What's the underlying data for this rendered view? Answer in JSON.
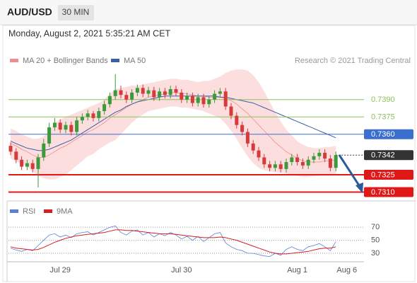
{
  "header": {
    "symbol": "AUD/USD",
    "interval": "30 MIN",
    "date": "Monday, August 2, 2021 5:35:21 AM CET",
    "credit": "Research © 2021 Trading Central"
  },
  "chart_data": [
    {
      "type": "candlestick",
      "categories": [
        null,
        null,
        null,
        null,
        null,
        null,
        null,
        null,
        null,
        "Jul 29",
        null,
        null,
        null,
        null,
        null,
        null,
        null,
        null,
        null,
        null,
        null,
        null,
        null,
        null,
        null,
        null,
        null,
        null,
        null,
        null,
        null,
        "Jul 30",
        null,
        null,
        null,
        null,
        null,
        null,
        null,
        null,
        null,
        null,
        null,
        null,
        null,
        null,
        null,
        null,
        null,
        null,
        null,
        null,
        "Aug 1",
        null,
        null,
        null,
        null,
        null,
        null,
        null,
        null,
        "Aug 6"
      ],
      "open": [
        0.735,
        0.7345,
        0.7338,
        0.7332,
        0.7335,
        0.733,
        0.734,
        0.7352,
        0.7366,
        0.737,
        0.7364,
        0.7368,
        0.7362,
        0.7372,
        0.7375,
        0.7378,
        0.7374,
        0.738,
        0.7386,
        0.7393,
        0.7398,
        0.7394,
        0.739,
        0.7396,
        0.74,
        0.7395,
        0.7398,
        0.7392,
        0.7397,
        0.7394,
        0.7399,
        0.7396,
        0.739,
        0.7393,
        0.7387,
        0.7392,
        0.7386,
        0.739,
        0.7395,
        0.7397,
        0.7384,
        0.7376,
        0.7368,
        0.7362,
        0.7352,
        0.7346,
        0.734,
        0.7334,
        0.7331,
        0.7334,
        0.733,
        0.7336,
        0.734,
        0.7336,
        0.7333,
        0.7338,
        0.7341,
        0.7344,
        0.7339,
        0.7331,
        null,
        null
      ],
      "high": [
        0.7353,
        0.7348,
        0.7341,
        0.7338,
        0.7338,
        0.7343,
        0.7356,
        0.737,
        0.7374,
        0.7373,
        0.7371,
        0.7371,
        0.7375,
        0.7378,
        0.7381,
        0.738,
        0.7383,
        0.7389,
        0.7396,
        0.7412,
        0.7402,
        0.7397,
        0.7399,
        0.7403,
        0.7403,
        0.7401,
        0.7401,
        0.74,
        0.74,
        0.7402,
        0.7402,
        0.7399,
        0.7396,
        0.7396,
        0.7395,
        0.7395,
        0.7393,
        0.7398,
        0.74,
        0.74,
        0.7387,
        0.7379,
        0.7371,
        0.7365,
        0.7355,
        0.7349,
        0.7343,
        0.7337,
        0.7337,
        0.7337,
        0.7339,
        0.7343,
        0.7343,
        0.7339,
        0.7341,
        0.7344,
        0.7347,
        0.7347,
        0.7342,
        0.7345,
        null,
        null
      ],
      "low": [
        0.7342,
        0.7335,
        0.7329,
        0.7329,
        0.7327,
        0.7314,
        0.7337,
        0.7349,
        0.7363,
        0.7361,
        0.7361,
        0.7359,
        0.7359,
        0.7369,
        0.7372,
        0.7371,
        0.7371,
        0.7377,
        0.7383,
        0.739,
        0.7391,
        0.7387,
        0.7387,
        0.7393,
        0.7392,
        0.7392,
        0.7389,
        0.7389,
        0.7391,
        0.7391,
        0.7393,
        0.7387,
        0.7387,
        0.7384,
        0.7384,
        0.7383,
        0.7383,
        0.7387,
        0.7392,
        0.7381,
        0.7373,
        0.7365,
        0.7359,
        0.7349,
        0.7343,
        0.7337,
        0.7331,
        0.7328,
        0.7328,
        0.7327,
        0.7327,
        0.7333,
        0.7333,
        0.733,
        0.733,
        0.7335,
        0.7338,
        0.7336,
        0.7328,
        0.7328,
        null,
        null
      ],
      "close": [
        0.7345,
        0.7338,
        0.7332,
        0.7335,
        0.733,
        0.734,
        0.7352,
        0.7366,
        0.737,
        0.7364,
        0.7368,
        0.7362,
        0.7372,
        0.7375,
        0.7378,
        0.7374,
        0.738,
        0.7386,
        0.7393,
        0.7398,
        0.7394,
        0.739,
        0.7396,
        0.74,
        0.7395,
        0.7398,
        0.7392,
        0.7397,
        0.7394,
        0.7399,
        0.7396,
        0.739,
        0.7393,
        0.7387,
        0.7392,
        0.7386,
        0.739,
        0.7395,
        0.7397,
        0.7384,
        0.7376,
        0.7368,
        0.7362,
        0.7352,
        0.7346,
        0.734,
        0.7334,
        0.7331,
        0.7334,
        0.733,
        0.7336,
        0.734,
        0.7336,
        0.7333,
        0.7338,
        0.7341,
        0.7344,
        0.7339,
        0.7331,
        0.7342,
        null,
        null
      ],
      "up_color": "#3c9a3c",
      "down_color": "#d63b3b",
      "ylim": [
        0.7303,
        0.7432
      ],
      "series": [
        {
          "name": "MA 20 + Bollinger Bands",
          "color": "#f08c8c",
          "band_color": "#fbd3d3",
          "values": [
            0.7352,
            0.735,
            0.7347,
            0.7345,
            0.7342,
            0.734,
            0.734,
            0.7342,
            0.7345,
            0.7348,
            0.735,
            0.7353,
            0.7356,
            0.7359,
            0.7362,
            0.7364,
            0.7367,
            0.737,
            0.7374,
            0.7377,
            0.738,
            0.7383,
            0.7386,
            0.7388,
            0.739,
            0.7392,
            0.7393,
            0.7394,
            0.7395,
            0.7396,
            0.7396,
            0.7395,
            0.7395,
            0.7394,
            0.7393,
            0.7393,
            0.7392,
            0.7392,
            0.7392,
            0.7391,
            0.7389,
            0.7386,
            0.7382,
            0.7378,
            0.7373,
            0.7368,
            0.7363,
            0.7358,
            0.7353,
            0.7349,
            0.7345,
            0.7342,
            0.7339,
            0.7337,
            0.7336,
            0.7336,
            0.7336,
            0.7337,
            0.7337,
            0.7338,
            null,
            null
          ],
          "upper": [
            0.7365,
            0.7363,
            0.736,
            0.7358,
            0.7356,
            0.7356,
            0.7358,
            0.7363,
            0.7369,
            0.7373,
            0.7375,
            0.7377,
            0.7379,
            0.7381,
            0.7383,
            0.7385,
            0.7387,
            0.739,
            0.7395,
            0.7399,
            0.74,
            0.7401,
            0.7402,
            0.7402,
            0.7403,
            0.7404,
            0.7405,
            0.7406,
            0.7407,
            0.7408,
            0.7408,
            0.7407,
            0.7407,
            0.7406,
            0.7405,
            0.7406,
            0.7406,
            0.7408,
            0.741,
            0.7413,
            0.7415,
            0.7416,
            0.7416,
            0.7415,
            0.7411,
            0.7405,
            0.7397,
            0.7388,
            0.7379,
            0.7371,
            0.7364,
            0.7359,
            0.7354,
            0.7351,
            0.7349,
            0.7348,
            0.7348,
            0.7349,
            0.7349,
            0.735,
            null,
            null
          ],
          "lower": [
            0.7339,
            0.7337,
            0.7334,
            0.7332,
            0.7328,
            0.7324,
            0.7322,
            0.7321,
            0.7321,
            0.7323,
            0.7325,
            0.7329,
            0.7333,
            0.7337,
            0.7341,
            0.7343,
            0.7347,
            0.735,
            0.7353,
            0.7355,
            0.736,
            0.7365,
            0.737,
            0.7374,
            0.7377,
            0.738,
            0.7381,
            0.7382,
            0.7383,
            0.7384,
            0.7384,
            0.7383,
            0.7383,
            0.7382,
            0.7381,
            0.738,
            0.7378,
            0.7376,
            0.7374,
            0.7369,
            0.7363,
            0.7356,
            0.7348,
            0.7341,
            0.7335,
            0.7331,
            0.7329,
            0.7328,
            0.7327,
            0.7327,
            0.7326,
            0.7325,
            0.7324,
            0.7323,
            0.7323,
            0.7324,
            0.7324,
            0.7325,
            0.7325,
            0.7326,
            null,
            null
          ]
        },
        {
          "name": "MA 50",
          "color": "#3a5ea8",
          "values": [
            0.7354,
            0.7352,
            0.735,
            0.7348,
            0.7347,
            0.7346,
            0.7346,
            0.7347,
            0.7349,
            0.7351,
            0.7353,
            0.7355,
            0.7358,
            0.7361,
            0.7364,
            0.7367,
            0.737,
            0.7373,
            0.7376,
            0.7379,
            0.7381,
            0.7384,
            0.7386,
            0.7388,
            0.7389,
            0.739,
            0.7391,
            0.7392,
            0.7393,
            0.7393,
            0.7393,
            0.7393,
            0.7393,
            0.7393,
            0.7393,
            0.7393,
            0.7393,
            0.7393,
            0.7392,
            0.7392,
            0.7391,
            0.739,
            0.7389,
            0.7388,
            0.7387,
            0.7385,
            0.7383,
            0.7381,
            0.7379,
            0.7377,
            0.7375,
            0.7373,
            0.7371,
            0.7369,
            0.7367,
            0.7365,
            0.7363,
            0.7361,
            0.7359,
            0.7357,
            null,
            null
          ]
        }
      ],
      "levels": [
        {
          "value": 0.739,
          "label": "0.7390",
          "color": "#8cc05a",
          "boxed": false
        },
        {
          "value": 0.7375,
          "label": "0.7375",
          "color": "#8cc05a",
          "boxed": false
        },
        {
          "value": 0.736,
          "label": "0.7360",
          "color": "#3a6fd0",
          "boxed": true
        },
        {
          "value": 0.7342,
          "label": "0.7342",
          "color": "#333333",
          "boxed": true,
          "current": true
        },
        {
          "value": 0.7325,
          "label": "0.7325",
          "color": "#e01818",
          "boxed": true
        },
        {
          "value": 0.731,
          "label": "0.7310",
          "color": "#e01818",
          "boxed": true
        }
      ]
    },
    {
      "type": "line",
      "ylim": [
        17,
        93
      ],
      "yticks": [
        70,
        50,
        30
      ],
      "series": [
        {
          "name": "RSI",
          "color": "#5b7fd6",
          "values": [
            38,
            35,
            33,
            36,
            34,
            42,
            50,
            58,
            60,
            55,
            58,
            54,
            60,
            62,
            63,
            58,
            62,
            66,
            70,
            72,
            62,
            58,
            64,
            66,
            58,
            62,
            55,
            60,
            57,
            62,
            58,
            52,
            56,
            50,
            56,
            48,
            54,
            60,
            62,
            46,
            40,
            36,
            34,
            30,
            30,
            28,
            26,
            25,
            30,
            27,
            36,
            40,
            36,
            34,
            40,
            42,
            45,
            40,
            34,
            48,
            null,
            null
          ]
        },
        {
          "name": "9MA",
          "color": "#d42020",
          "values": [
            40,
            38,
            37,
            36,
            35,
            36,
            39,
            43,
            47,
            50,
            53,
            55,
            57,
            58,
            59,
            60,
            61,
            62,
            64,
            66,
            66,
            65,
            65,
            64,
            63,
            62,
            61,
            60,
            60,
            60,
            59,
            58,
            57,
            56,
            55,
            54,
            54,
            54,
            55,
            54,
            52,
            50,
            47,
            44,
            41,
            38,
            35,
            32,
            30,
            29,
            29,
            30,
            31,
            32,
            33,
            35,
            37,
            38,
            38,
            40,
            null,
            null
          ]
        }
      ]
    }
  ]
}
